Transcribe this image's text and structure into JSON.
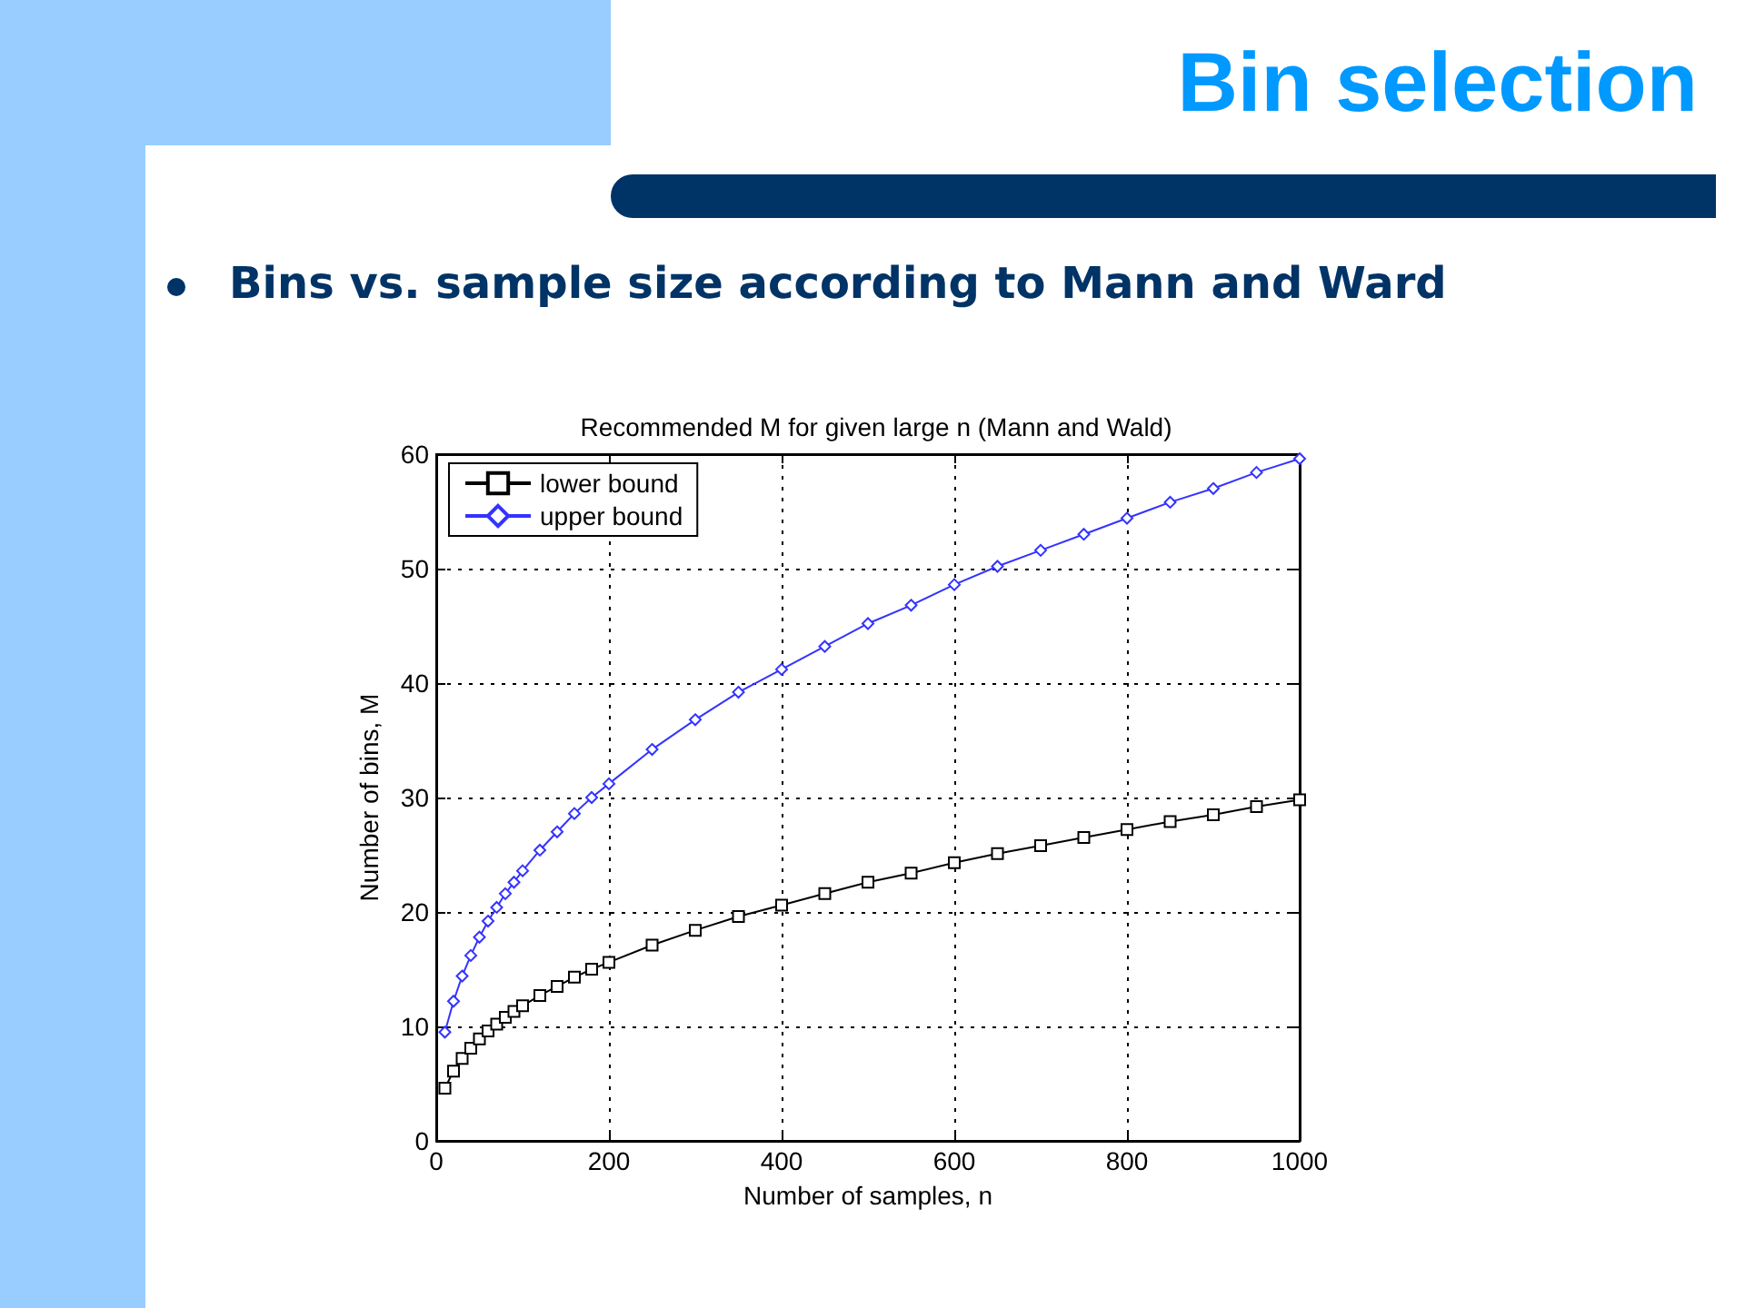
{
  "chart_data": {
    "type": "line",
    "title": "Recommended M for given large n (Mann and Wald)",
    "xlabel": "Number of samples, n",
    "ylabel": "Number of bins, M",
    "annotations": [
      "Bin selection",
      "Bins vs. sample size according to Mann and Ward"
    ],
    "x": [
      10,
      20,
      30,
      40,
      50,
      60,
      70,
      80,
      90,
      100,
      120,
      140,
      160,
      180,
      200,
      250,
      300,
      350,
      400,
      450,
      500,
      550,
      600,
      650,
      700,
      750,
      800,
      850,
      900,
      950,
      1000
    ],
    "series": [
      {
        "name": "lower bound",
        "color": "#000000",
        "marker": "square",
        "values": [
          4.6,
          6.1,
          7.2,
          8.1,
          8.9,
          9.6,
          10.2,
          10.8,
          11.3,
          11.8,
          12.7,
          13.5,
          14.3,
          15.0,
          15.6,
          17.1,
          18.4,
          19.6,
          20.6,
          21.6,
          22.6,
          23.4,
          24.3,
          25.1,
          25.8,
          26.5,
          27.2,
          27.9,
          28.5,
          29.2,
          29.8
        ]
      },
      {
        "name": "upper bound",
        "color": "#3333ff",
        "marker": "diamond",
        "values": [
          9.5,
          12.2,
          14.4,
          16.2,
          17.8,
          19.2,
          20.4,
          21.6,
          22.6,
          23.6,
          25.4,
          27.0,
          28.6,
          30.0,
          31.2,
          34.2,
          36.8,
          39.2,
          41.2,
          43.2,
          45.2,
          46.8,
          48.6,
          50.2,
          51.6,
          53.0,
          54.4,
          55.8,
          57.0,
          58.4,
          59.6
        ]
      }
    ],
    "xlim": [
      0,
      1000
    ],
    "xticks": [
      0,
      200,
      400,
      600,
      800,
      1000
    ],
    "ylim": [
      0,
      60
    ],
    "yticks": [
      0,
      10,
      20,
      30,
      40,
      50,
      60
    ],
    "grid": true,
    "legend": "top left",
    "line_style": "solid"
  }
}
